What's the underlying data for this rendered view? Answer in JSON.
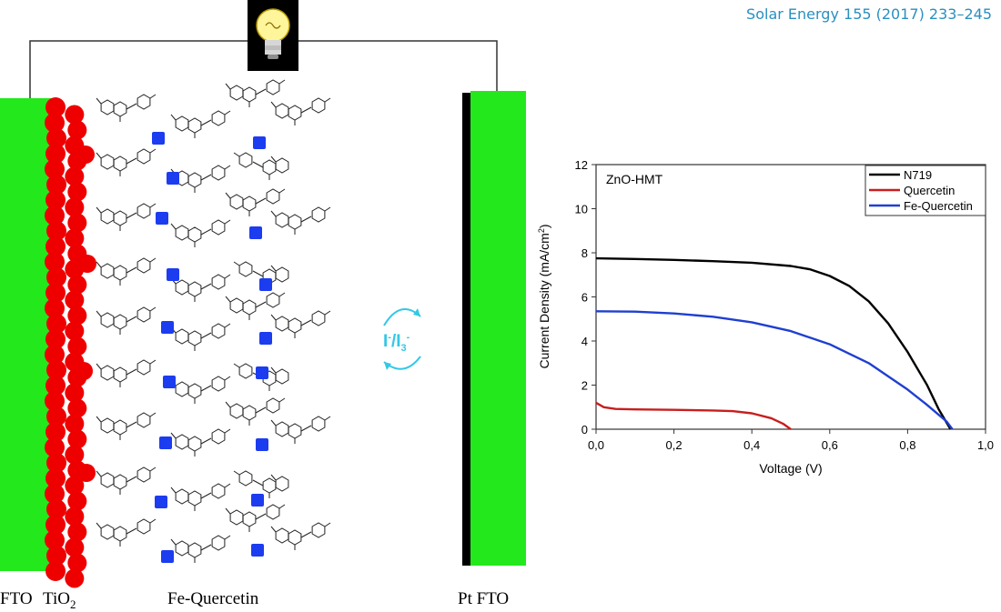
{
  "citation": "Solar Energy 155 (2017) 233–245",
  "labels": {
    "fto_left": "FTO",
    "tio2_base": "TiO",
    "tio2_sub": "2",
    "fe_quercetin": "Fe-Quercetin",
    "pt_fto": "Pt  FTO"
  },
  "redox": {
    "i_base": "I",
    "i_sup": "-",
    "slash": "/I",
    "i3_sub": "3",
    "i3_sup": "-"
  },
  "colors": {
    "electrode": "#22e81c",
    "tio2": "#ee0000",
    "fe_ion": "#1c3cf0",
    "redox": "#33c8e6",
    "n719": "#000000",
    "quercetin": "#c81e1e",
    "fe_quercetin_curve": "#1f3fd0"
  },
  "icons": [
    "light-bulb-icon",
    "redox-cycle-icon"
  ],
  "chart_data": {
    "type": "line",
    "annotation": "ZnO-HMT",
    "xlabel": "Voltage (V)",
    "ylabel": "Current Density (mA/cm",
    "ylabel_sup": "2",
    "ylabel_end": ")",
    "xlim": [
      0.0,
      1.0
    ],
    "ylim": [
      0,
      12
    ],
    "xticks": [
      "0,0",
      "0,2",
      "0,4",
      "0,6",
      "0,8",
      "1,0"
    ],
    "yticks": [
      "0",
      "2",
      "4",
      "6",
      "8",
      "10",
      "12"
    ],
    "legend_position": "top-right",
    "series": [
      {
        "name": "N719",
        "color": "#000000",
        "x": [
          0.0,
          0.1,
          0.2,
          0.3,
          0.4,
          0.5,
          0.55,
          0.6,
          0.65,
          0.7,
          0.75,
          0.8,
          0.85,
          0.88,
          0.91
        ],
        "y": [
          7.75,
          7.72,
          7.68,
          7.62,
          7.55,
          7.4,
          7.25,
          6.95,
          6.5,
          5.8,
          4.8,
          3.5,
          2.0,
          0.9,
          0.0
        ]
      },
      {
        "name": "Quercetin",
        "color": "#c81e1e",
        "x": [
          0.0,
          0.02,
          0.05,
          0.1,
          0.2,
          0.3,
          0.35,
          0.4,
          0.45,
          0.48,
          0.5
        ],
        "y": [
          1.2,
          1.0,
          0.92,
          0.9,
          0.88,
          0.85,
          0.82,
          0.72,
          0.5,
          0.25,
          0.0
        ]
      },
      {
        "name": "Fe-Quercetin",
        "color": "#1f3fd0",
        "x": [
          0.0,
          0.1,
          0.2,
          0.3,
          0.4,
          0.5,
          0.6,
          0.7,
          0.8,
          0.85,
          0.9,
          0.915
        ],
        "y": [
          5.35,
          5.33,
          5.25,
          5.1,
          4.85,
          4.45,
          3.85,
          3.0,
          1.8,
          1.1,
          0.35,
          0.0
        ]
      }
    ]
  }
}
